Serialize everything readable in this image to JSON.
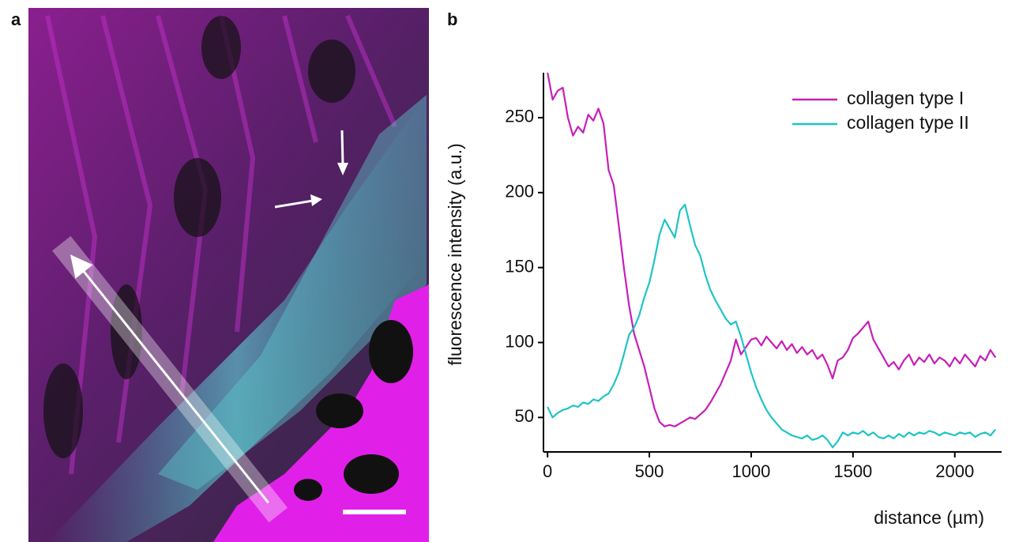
{
  "panel_labels": [
    "a",
    "b"
  ],
  "chart_data": {
    "type": "line",
    "x_label": "distance (µm)",
    "y_label": "fluorescence intensity (a.u.)",
    "xlim": [
      -20,
      2230
    ],
    "ylim": [
      27,
      280
    ],
    "xticks": [
      0,
      500,
      1000,
      1500,
      2000
    ],
    "yticks": [
      50,
      100,
      150,
      200,
      250
    ],
    "legend": "upper right",
    "x": [
      0,
      25,
      50,
      75,
      100,
      125,
      150,
      175,
      200,
      225,
      250,
      275,
      300,
      325,
      350,
      375,
      400,
      425,
      450,
      475,
      500,
      525,
      550,
      575,
      600,
      625,
      650,
      675,
      700,
      725,
      750,
      775,
      800,
      825,
      850,
      875,
      900,
      925,
      950,
      975,
      1000,
      1025,
      1050,
      1075,
      1100,
      1125,
      1150,
      1175,
      1200,
      1225,
      1250,
      1275,
      1300,
      1325,
      1350,
      1375,
      1400,
      1425,
      1450,
      1475,
      1500,
      1525,
      1550,
      1575,
      1600,
      1625,
      1650,
      1675,
      1700,
      1725,
      1750,
      1775,
      1800,
      1825,
      1850,
      1875,
      1900,
      1925,
      1950,
      1975,
      2000,
      2025,
      2050,
      2075,
      2100,
      2125,
      2150,
      2175,
      2200
    ],
    "series": [
      {
        "name": "collagen type I",
        "color": "#c61fb8",
        "values": [
          280,
          262,
          268,
          270,
          250,
          238,
          244,
          240,
          252,
          248,
          256,
          246,
          215,
          205,
          178,
          150,
          125,
          106,
          95,
          84,
          70,
          56,
          47,
          44,
          45,
          44,
          46,
          48,
          50,
          49,
          52,
          55,
          60,
          66,
          72,
          80,
          88,
          102,
          92,
          97,
          102,
          103,
          98,
          104,
          100,
          96,
          101,
          95,
          99,
          93,
          97,
          92,
          95,
          89,
          92,
          85,
          76,
          88,
          90,
          95,
          103,
          106,
          110,
          114,
          102,
          96,
          90,
          84,
          87,
          82,
          88,
          92,
          85,
          90,
          87,
          92,
          86,
          90,
          88,
          84,
          90,
          86,
          92,
          88,
          84,
          91,
          88,
          95,
          90
        ]
      },
      {
        "name": "collagen type II",
        "color": "#1fc4c4",
        "values": [
          57,
          50,
          53,
          55,
          56,
          58,
          57,
          60,
          59,
          62,
          61,
          64,
          66,
          72,
          80,
          92,
          105,
          110,
          118,
          130,
          140,
          155,
          172,
          182,
          176,
          170,
          188,
          192,
          178,
          165,
          158,
          145,
          135,
          128,
          122,
          116,
          112,
          114,
          104,
          92,
          80,
          70,
          62,
          55,
          50,
          46,
          42,
          40,
          38,
          37,
          36,
          38,
          35,
          36,
          38,
          35,
          30,
          34,
          40,
          38,
          40,
          39,
          41,
          38,
          40,
          37,
          36,
          38,
          36,
          39,
          37,
          40,
          38,
          40,
          39,
          41,
          40,
          38,
          40,
          39,
          38,
          40,
          39,
          40,
          37,
          39,
          40,
          38,
          42
        ]
      }
    ]
  }
}
